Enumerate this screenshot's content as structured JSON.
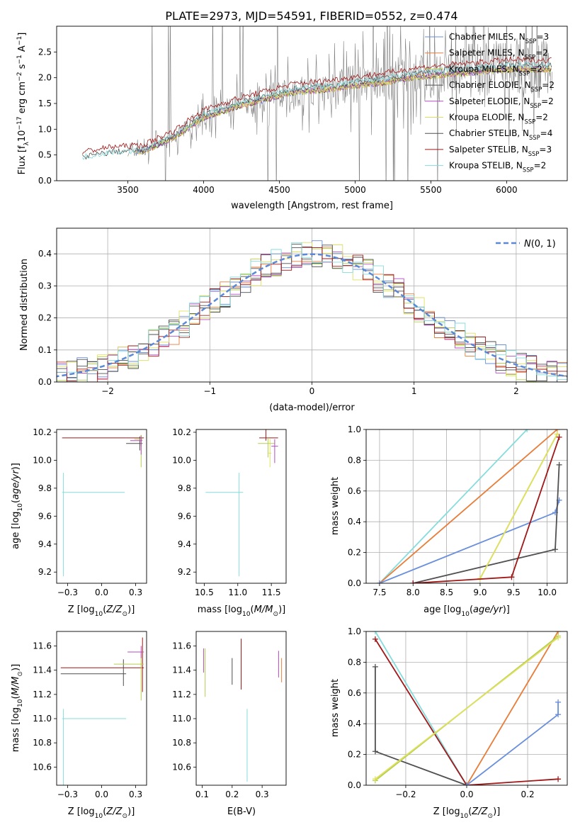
{
  "figure_title": "PLATE=2973, MJD=54591, FIBERID=0552, z=0.474",
  "colors": {
    "chabrier_miles": "#6a8fdc",
    "salpeter_miles": "#e87d3a",
    "kroupa_miles": "#b5cf4f",
    "chabrier_elodie": "#4e4e4e",
    "salpeter_elodie": "#b44ec2",
    "kroupa_elodie": "#dfe060",
    "chabrier_stelib": "#505050",
    "salpeter_stelib": "#a01818",
    "kroupa_stelib": "#86dcdc",
    "gaussian": "#5b89d6",
    "data": "#808080"
  },
  "chart_data": [
    {
      "id": "spectrum",
      "type": "line",
      "title": "PLATE=2973, MJD=54591, FIBERID=0552, z=0.474",
      "xlabel": "wavelength [Angstrom, rest frame]",
      "ylabel": "Flux [f_λ 10^-17 erg cm^-2 s^-1 A^-1]",
      "xlim": [
        3030,
        6400
      ],
      "ylim": [
        0,
        3.0
      ],
      "xticks": [
        3500,
        4000,
        4500,
        5000,
        5500,
        6000
      ],
      "yticks": [
        0.0,
        0.5,
        1.0,
        1.5,
        2.0,
        2.5
      ],
      "legend_position": "top-right",
      "legend": [
        {
          "label": "Chabrier MILES, N_SSP=3",
          "sub": "SSP",
          "pre": "Chabrier MILES, N",
          "post": "=3",
          "color_key": "chabrier_miles"
        },
        {
          "label": "Salpeter MILES, N_SSP=2",
          "sub": "SSP",
          "pre": "Salpeter MILES, N",
          "post": "=2",
          "color_key": "salpeter_miles"
        },
        {
          "label": "Kroupa MILES, N_SSP=2",
          "sub": "SSP",
          "pre": "Kroupa MILES, N",
          "post": "=2",
          "color_key": "kroupa_miles"
        },
        {
          "label": "Chabrier ELODIE, N_SSP=2",
          "sub": "SSP",
          "pre": "Chabrier ELODIE, N",
          "post": "=2",
          "color_key": "chabrier_elodie"
        },
        {
          "label": "Salpeter ELODIE, N_SSP=2",
          "sub": "SSP",
          "pre": "Salpeter ELODIE, N",
          "post": "=2",
          "color_key": "salpeter_elodie"
        },
        {
          "label": "Kroupa ELODIE, N_SSP=2",
          "sub": "SSP",
          "pre": "Kroupa ELODIE, N",
          "post": "=2",
          "color_key": "kroupa_elodie"
        },
        {
          "label": "Chabrier STELIB, N_SSP=4",
          "sub": "SSP",
          "pre": "Chabrier STELIB, N",
          "post": "=4",
          "color_key": "chabrier_stelib"
        },
        {
          "label": "Salpeter STELIB, N_SSP=3",
          "sub": "SSP",
          "pre": "Salpeter STELIB, N",
          "post": "=3",
          "color_key": "salpeter_stelib"
        },
        {
          "label": "Kroupa STELIB, N_SSP=2",
          "sub": "SSP",
          "pre": "Kroupa STELIB, N",
          "post": "=2",
          "color_key": "kroupa_stelib"
        }
      ],
      "continuum": {
        "x": [
          3200,
          3400,
          3600,
          3800,
          4000,
          4200,
          4400,
          4600,
          4800,
          5000,
          5200,
          5400,
          5600,
          5800,
          6000,
          6200
        ],
        "y": [
          0.45,
          0.55,
          0.58,
          0.85,
          1.25,
          1.45,
          1.6,
          1.75,
          1.8,
          1.88,
          1.95,
          2.05,
          2.1,
          2.15,
          2.2,
          2.2
        ]
      }
    },
    {
      "id": "residuals",
      "type": "line",
      "xlabel": "(data-model)/error",
      "ylabel": "Normed distribution",
      "xlim": [
        -2.5,
        2.5
      ],
      "ylim": [
        0,
        0.48
      ],
      "xticks": [
        -2,
        -1,
        0,
        1,
        2
      ],
      "yticks": [
        0.0,
        0.1,
        0.2,
        0.3,
        0.4
      ],
      "grid": true,
      "legend_position": "top-right",
      "gaussian_label": "N(0,1)",
      "bin_width": 0.1,
      "histogram_envelope": [
        0.02,
        0.02,
        0.03,
        0.03,
        0.05,
        0.06,
        0.09,
        0.11,
        0.13,
        0.15,
        0.15,
        0.18,
        0.22,
        0.24,
        0.23,
        0.25,
        0.27,
        0.31,
        0.33,
        0.34,
        0.33,
        0.36,
        0.35,
        0.36,
        0.38,
        0.37,
        0.38,
        0.39,
        0.4,
        0.36,
        0.35,
        0.34,
        0.36,
        0.35,
        0.34,
        0.31,
        0.33,
        0.32,
        0.3,
        0.29,
        0.28,
        0.3,
        0.32,
        0.28,
        0.25,
        0.24,
        0.22,
        0.21,
        0.19,
        0.18,
        0.17,
        0.16,
        0.15,
        0.14,
        0.13,
        0.12,
        0.11,
        0.1,
        0.1,
        0.09,
        0.08,
        0.08,
        0.07,
        0.06,
        0.06,
        0.05,
        0.05,
        0.04,
        0.04,
        0.04
      ]
    },
    {
      "id": "age_vs_Z",
      "type": "scatter",
      "xlabel": "Z [log10(Z/Z⊙)]",
      "ylabel": "age [log10(age/yr)]",
      "xlim": [
        -0.33,
        0.33
      ],
      "ylim": [
        9.12,
        10.22
      ],
      "xticks": [
        -0.25,
        0.0,
        0.25
      ],
      "yticks": [
        9.2,
        9.4,
        9.6,
        9.8,
        10.0,
        10.2
      ],
      "points": [
        {
          "x": 0.29,
          "y": 10.16,
          "xerr": [
            0.58,
            0.02
          ],
          "yerr": [
            0.06,
            0.02
          ],
          "color_key": "salpeter_stelib"
        },
        {
          "x": 0.28,
          "y": 10.12,
          "xerr": [
            0.1,
            0.02
          ],
          "yerr": [
            0.05,
            0.05
          ],
          "color_key": "chabrier_elodie"
        },
        {
          "x": 0.29,
          "y": 10.15,
          "xerr": [
            0.05,
            0.01
          ],
          "yerr": [
            0.2,
            0.03
          ],
          "color_key": "kroupa_miles"
        },
        {
          "x": 0.29,
          "y": 10.14,
          "xerr": [
            0.08,
            0.01
          ],
          "yerr": [
            0.1,
            0.03
          ],
          "color_key": "salpeter_elodie"
        },
        {
          "x": -0.28,
          "y": 9.77,
          "xerr": [
            0.01,
            0.45
          ],
          "yerr": [
            0.6,
            0.14
          ],
          "color_key": "kroupa_stelib"
        }
      ]
    },
    {
      "id": "age_vs_mass",
      "type": "scatter",
      "xlabel": "mass [log10(M/M⊙)]",
      "xlim": [
        10.38,
        11.72
      ],
      "ylim": [
        9.12,
        10.22
      ],
      "xticks": [
        10.5,
        11.0,
        11.5
      ],
      "yticks": [
        9.2,
        9.4,
        9.6,
        9.8,
        10.0,
        10.2
      ],
      "points": [
        {
          "x": 11.42,
          "y": 10.16,
          "xerr": [
            0.1,
            0.18
          ],
          "yerr": [
            0.02,
            0.06
          ],
          "color_key": "salpeter_stelib"
        },
        {
          "x": 11.45,
          "y": 10.12,
          "xerr": [
            0.15,
            0.1
          ],
          "yerr": [
            0.1,
            0.04
          ],
          "color_key": "kroupa_miles"
        },
        {
          "x": 11.55,
          "y": 10.1,
          "xerr": [
            0.05,
            0.05
          ],
          "yerr": [
            0.12,
            0.05
          ],
          "color_key": "salpeter_elodie"
        },
        {
          "x": 11.48,
          "y": 10.05,
          "xerr": [
            0.02,
            0.02
          ],
          "yerr": [
            0.1,
            0.1
          ],
          "color_key": "kroupa_elodie"
        },
        {
          "x": 11.02,
          "y": 9.77,
          "xerr": [
            0.5,
            0.06
          ],
          "yerr": [
            0.6,
            0.14
          ],
          "color_key": "kroupa_stelib"
        }
      ]
    },
    {
      "id": "cumulative_mass_vs_age",
      "type": "line",
      "xlabel": "age [log10(age/yr)]",
      "ylabel": "mass weight",
      "xlim": [
        7.3,
        10.3
      ],
      "ylim": [
        0,
        1.0
      ],
      "xticks": [
        7.5,
        8.0,
        8.5,
        9.0,
        9.5,
        10.0
      ],
      "yticks": [
        0.0,
        0.2,
        0.4,
        0.6,
        0.8,
        1.0
      ],
      "grid": true,
      "series": [
        {
          "color_key": "kroupa_stelib",
          "x": [
            7.5,
            9.7
          ],
          "y": [
            0.0,
            1.0
          ]
        },
        {
          "color_key": "salpeter_miles",
          "x": [
            7.5,
            10.15
          ],
          "y": [
            0.0,
            1.0
          ]
        },
        {
          "color_key": "chabrier_miles",
          "x": [
            7.5,
            10.12,
            10.18
          ],
          "y": [
            0.0,
            0.46,
            0.54
          ]
        },
        {
          "color_key": "chabrier_stelib",
          "x": [
            8.0,
            10.12,
            10.18
          ],
          "y": [
            0.0,
            0.22,
            0.77
          ]
        },
        {
          "color_key": "kroupa_miles",
          "x": [
            9.0,
            10.15
          ],
          "y": [
            0.03,
            0.97
          ]
        },
        {
          "color_key": "kroupa_elodie",
          "x": [
            9.0,
            10.15
          ],
          "y": [
            0.03,
            0.97
          ]
        },
        {
          "color_key": "salpeter_stelib",
          "x": [
            8.0,
            9.47,
            10.18
          ],
          "y": [
            0.0,
            0.04,
            0.95
          ]
        }
      ]
    },
    {
      "id": "mass_vs_Z",
      "type": "scatter",
      "xlabel": "Z [log10(Z/Z⊙)]",
      "ylabel": "mass [log10(M/M⊙)]",
      "xlim": [
        -0.33,
        0.33
      ],
      "ylim": [
        10.45,
        11.72
      ],
      "xticks": [
        -0.25,
        0.0,
        0.25
      ],
      "yticks": [
        10.6,
        10.8,
        11.0,
        11.2,
        11.4,
        11.6
      ],
      "points": [
        {
          "x": 0.3,
          "y": 11.42,
          "xerr": [
            0.6,
            0.01
          ],
          "yerr": [
            0.2,
            0.25
          ],
          "color_key": "salpeter_stelib"
        },
        {
          "x": 0.16,
          "y": 11.37,
          "xerr": [
            0.46,
            0.02
          ],
          "yerr": [
            0.1,
            0.12
          ],
          "color_key": "chabrier_elodie"
        },
        {
          "x": 0.29,
          "y": 11.45,
          "xerr": [
            0.2,
            0.02
          ],
          "yerr": [
            0.3,
            0.1
          ],
          "color_key": "kroupa_miles"
        },
        {
          "x": 0.29,
          "y": 11.55,
          "xerr": [
            0.1,
            0.02
          ],
          "yerr": [
            0.05,
            0.05
          ],
          "color_key": "salpeter_elodie"
        },
        {
          "x": -0.28,
          "y": 11.0,
          "xerr": [
            0.01,
            0.46
          ],
          "yerr": [
            0.55,
            0.08
          ],
          "color_key": "kroupa_stelib"
        }
      ]
    },
    {
      "id": "mass_vs_EBV",
      "type": "scatter",
      "xlabel": "E(B-V)",
      "xlim": [
        0.08,
        0.38
      ],
      "ylim": [
        10.45,
        11.72
      ],
      "xticks": [
        0.1,
        0.2,
        0.3
      ],
      "yticks": [
        10.6,
        10.8,
        11.0,
        11.2,
        11.4,
        11.6
      ],
      "points": [
        {
          "x": 0.11,
          "y": 11.38,
          "yerr": [
            0.2,
            0.2
          ],
          "color_key": "kroupa_miles"
        },
        {
          "x": 0.105,
          "y": 11.48,
          "yerr": [
            0.1,
            0.1
          ],
          "color_key": "salpeter_elodie"
        },
        {
          "x": 0.2,
          "y": 11.38,
          "yerr": [
            0.1,
            0.12
          ],
          "color_key": "chabrier_elodie"
        },
        {
          "x": 0.23,
          "y": 11.44,
          "yerr": [
            0.2,
            0.22
          ],
          "color_key": "salpeter_stelib"
        },
        {
          "x": 0.25,
          "y": 10.78,
          "yerr": [
            0.3,
            0.3
          ],
          "color_key": "kroupa_stelib"
        },
        {
          "x": 0.355,
          "y": 11.44,
          "yerr": [
            0.1,
            0.12
          ],
          "color_key": "salpeter_elodie"
        },
        {
          "x": 0.365,
          "y": 11.4,
          "yerr": [
            0.1,
            0.1
          ],
          "color_key": "salpeter_miles"
        }
      ]
    },
    {
      "id": "cumulative_mass_vs_Z",
      "type": "line",
      "xlabel": "Z [log10(Z/Z⊙)]",
      "ylabel": "mass weight",
      "xlim": [
        -0.33,
        0.33
      ],
      "ylim": [
        0,
        1.0
      ],
      "xticks": [
        -0.2,
        0.0,
        0.2
      ],
      "yticks": [
        0.0,
        0.2,
        0.4,
        0.6,
        0.8,
        1.0
      ],
      "grid": true,
      "series": [
        {
          "color_key": "kroupa_stelib",
          "x": [
            -0.3,
            0.0
          ],
          "y": [
            1.0,
            0.0
          ]
        },
        {
          "color_key": "salpeter_stelib",
          "x": [
            -0.3,
            0.0,
            0.3
          ],
          "y": [
            0.95,
            0.0,
            0.04
          ]
        },
        {
          "color_key": "chabrier_stelib",
          "x": [
            -0.3,
            -0.3,
            0.0
          ],
          "y": [
            0.77,
            0.22,
            0.0
          ]
        },
        {
          "color_key": "salpeter_miles",
          "x": [
            0.0,
            0.3
          ],
          "y": [
            0.0,
            1.0
          ]
        },
        {
          "color_key": "chabrier_miles",
          "x": [
            0.0,
            0.3,
            0.3
          ],
          "y": [
            0.0,
            0.46,
            0.54
          ]
        },
        {
          "color_key": "kroupa_miles",
          "x": [
            -0.3,
            0.3
          ],
          "y": [
            0.03,
            0.97
          ]
        },
        {
          "color_key": "kroupa_elodie",
          "x": [
            -0.3,
            0.3
          ],
          "y": [
            0.04,
            0.96
          ]
        }
      ]
    }
  ]
}
